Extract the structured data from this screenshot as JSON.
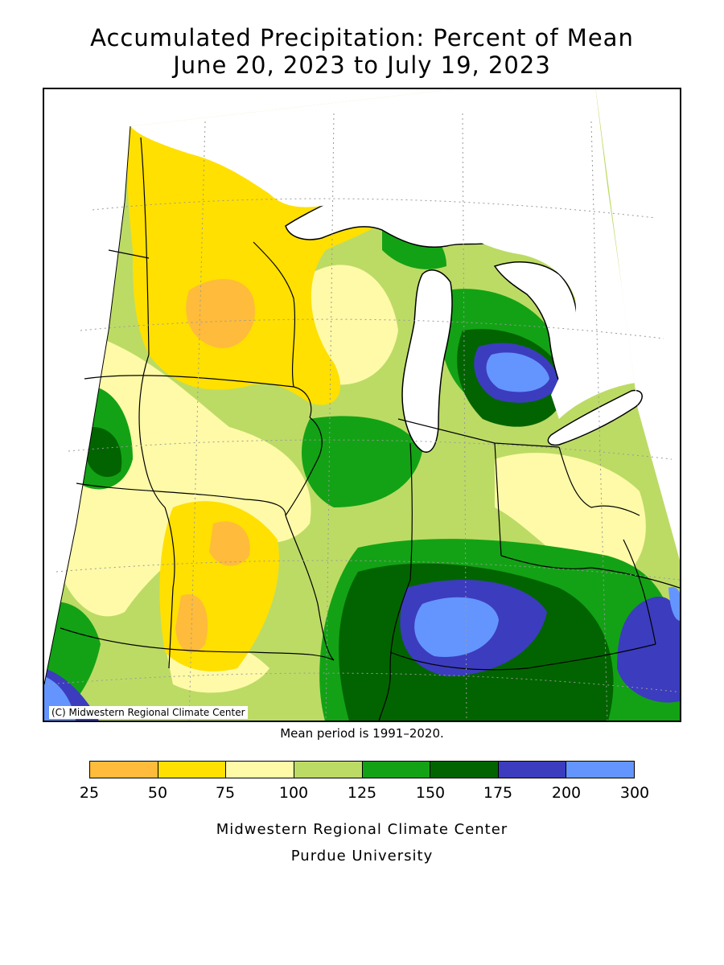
{
  "title": {
    "line1": "Accumulated Precipitation: Percent of Mean",
    "line2": "June 20, 2023 to July 19, 2023"
  },
  "map": {
    "copyright": "(C) Midwestern Regional Climate Center",
    "region_colors": {
      "25-50": "#ffbb3c",
      "50-75": "#ffe000",
      "75-100": "#fffaa8",
      "100-125": "#bcdb65",
      "125-150": "#13a215",
      "150-175": "#026400",
      "175-200": "#3c3cbe",
      "200-300": "#6495ff"
    },
    "lake_color": "#ffffff"
  },
  "mean_note": "Mean period is 1991–2020.",
  "legend": {
    "colors": [
      "#ffbb3c",
      "#ffe000",
      "#fffaa8",
      "#bcdb65",
      "#13a215",
      "#026400",
      "#3c3cbe",
      "#6495ff"
    ],
    "ticks": [
      "25",
      "50",
      "75",
      "100",
      "125",
      "150",
      "175",
      "200",
      "300"
    ]
  },
  "footer": {
    "line1": "Midwestern Regional Climate Center",
    "line2": "Purdue University"
  }
}
